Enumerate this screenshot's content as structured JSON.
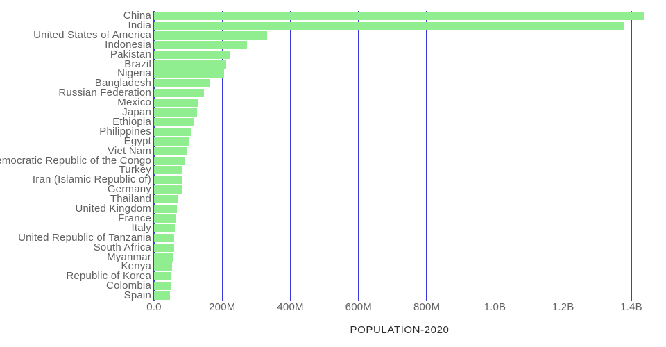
{
  "chart_data": {
    "type": "bar",
    "orientation": "horizontal",
    "title": "",
    "xlabel": "POPULATION-2020",
    "ylabel": "",
    "legend": "none",
    "grid": "vertical-gridlines-only",
    "categories": [
      "China",
      "India",
      "United States of America",
      "Indonesia",
      "Pakistan",
      "Brazil",
      "Nigeria",
      "Bangladesh",
      "Russian Federation",
      "Mexico",
      "Japan",
      "Ethiopia",
      "Philippines",
      "Egypt",
      "Viet Nam",
      "Democratic Republic of the Congo",
      "Turkey",
      "Iran (Islamic Republic of)",
      "Germany",
      "Thailand",
      "United Kingdom",
      "France",
      "Italy",
      "United Republic of Tanzania",
      "South Africa",
      "Myanmar",
      "Kenya",
      "Republic of Korea",
      "Colombia",
      "Spain"
    ],
    "values_millions": [
      1439.3,
      1380.0,
      331.0,
      273.5,
      220.9,
      212.6,
      206.1,
      164.7,
      145.9,
      128.9,
      126.5,
      115.0,
      109.6,
      102.3,
      97.3,
      89.6,
      84.3,
      84.0,
      83.8,
      69.8,
      67.9,
      65.3,
      60.5,
      59.7,
      59.3,
      54.4,
      53.8,
      51.3,
      50.9,
      46.8
    ],
    "x_tick_labels": [
      "0.0",
      "200M",
      "400M",
      "600M",
      "800M",
      "1.0B",
      "1.2B",
      "1.4B"
    ],
    "x_tick_values_millions": [
      0,
      200,
      400,
      600,
      800,
      1000,
      1200,
      1400
    ],
    "xlim_millions": [
      0,
      1400
    ],
    "colors": {
      "bar": "#90EE90",
      "gridline": "#3A3ADF",
      "tick_label": "#606060",
      "category_label": "#606060",
      "axis_title": "#2E2E2E",
      "background": "#FFFFFF"
    }
  }
}
